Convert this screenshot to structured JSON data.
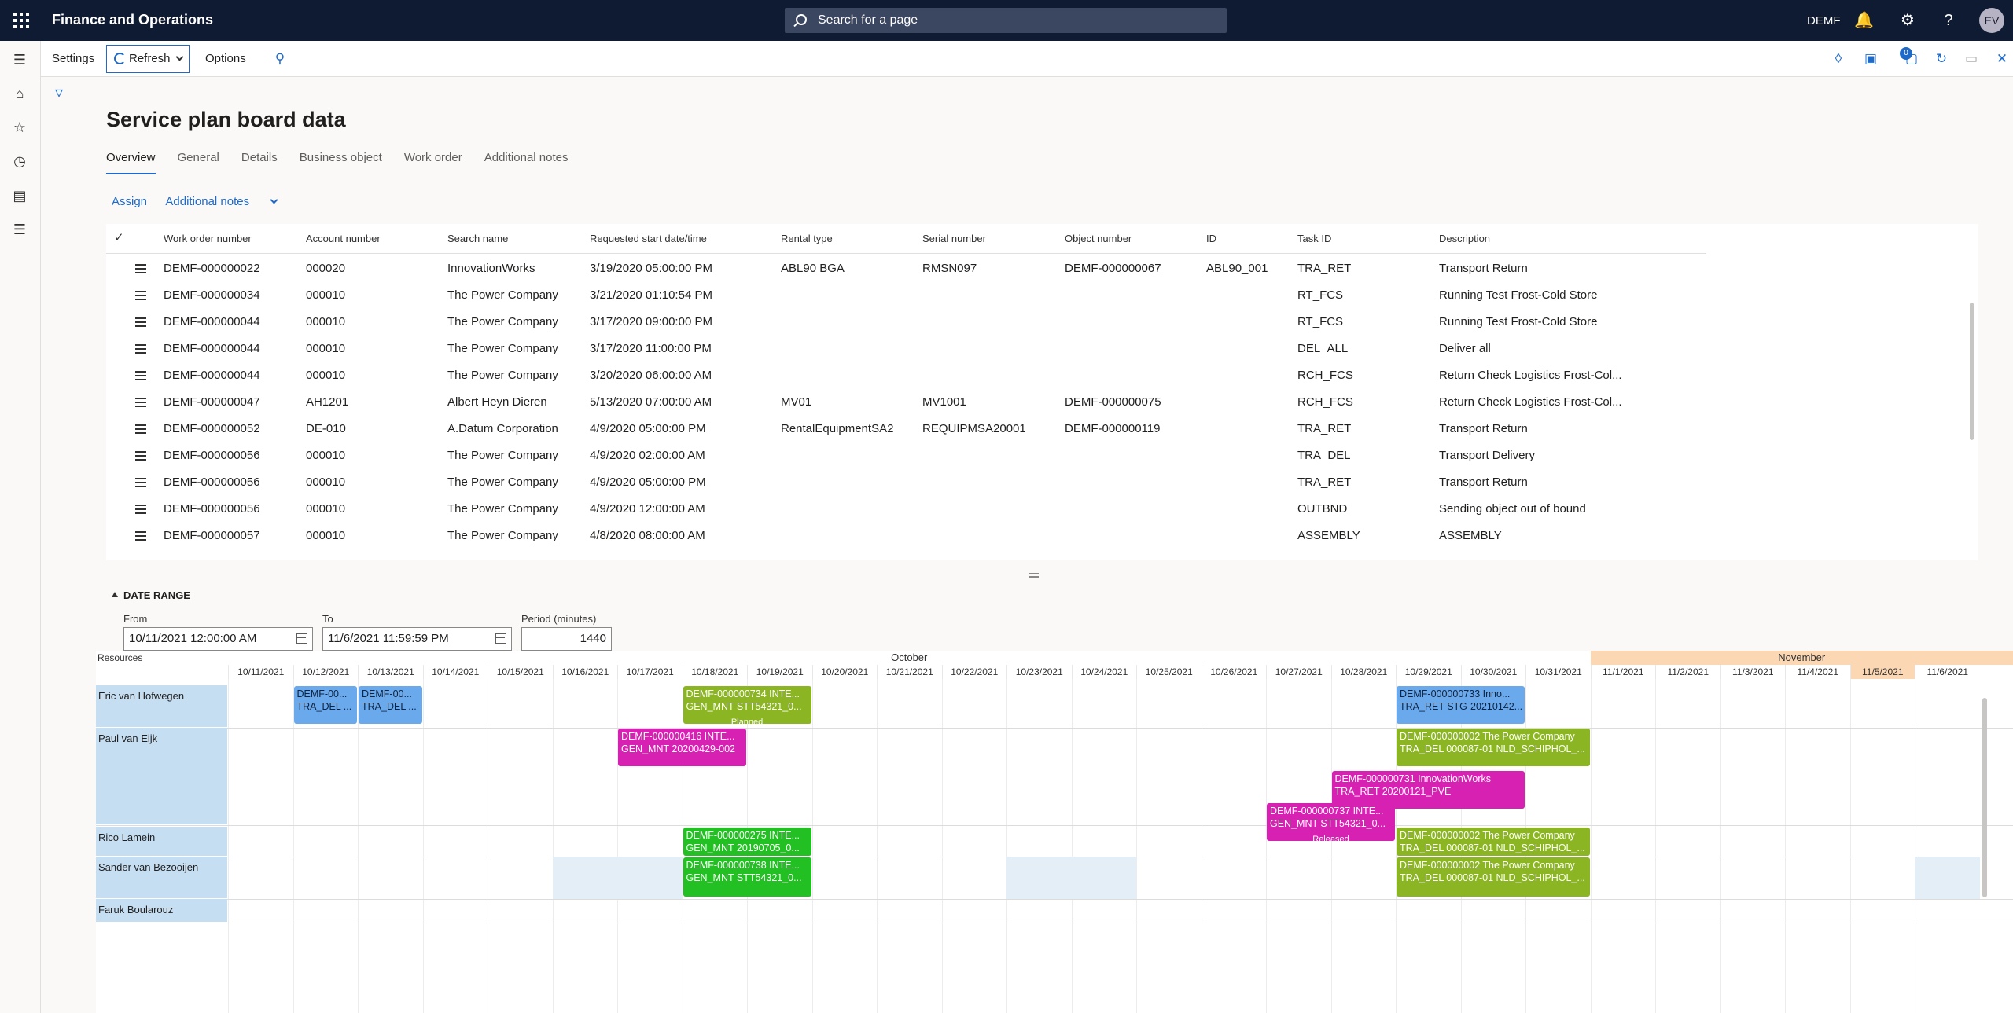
{
  "app": {
    "title": "Finance and Operations",
    "search_placeholder": "Search for a page",
    "company": "DEMF",
    "user_initials": "EV"
  },
  "actionbar": {
    "settings": "Settings",
    "refresh": "Refresh",
    "options": "Options",
    "badge_count": "0"
  },
  "page": {
    "title": "Service plan board data",
    "tabs": [
      "Overview",
      "General",
      "Details",
      "Business object",
      "Work order",
      "Additional notes"
    ],
    "actions": {
      "assign": "Assign",
      "additional_notes": "Additional notes"
    }
  },
  "grid": {
    "columns": [
      "Work order number",
      "Account number",
      "Search name",
      "Requested start date/time",
      "Rental type",
      "Serial number",
      "Object number",
      "ID",
      "Task ID",
      "Description"
    ],
    "rows": [
      [
        "DEMF-000000022",
        "000020",
        "InnovationWorks",
        "3/19/2020 05:00:00 PM",
        "ABL90 BGA",
        "RMSN097",
        "DEMF-000000067",
        "ABL90_001",
        "TRA_RET",
        "Transport Return"
      ],
      [
        "DEMF-000000034",
        "000010",
        "The Power Company",
        "3/21/2020 01:10:54 PM",
        "",
        "",
        "",
        "",
        "RT_FCS",
        "Running Test Frost-Cold Store"
      ],
      [
        "DEMF-000000044",
        "000010",
        "The Power Company",
        "3/17/2020 09:00:00 PM",
        "",
        "",
        "",
        "",
        "RT_FCS",
        "Running Test Frost-Cold Store"
      ],
      [
        "DEMF-000000044",
        "000010",
        "The Power Company",
        "3/17/2020 11:00:00 PM",
        "",
        "",
        "",
        "",
        "DEL_ALL",
        "Deliver all"
      ],
      [
        "DEMF-000000044",
        "000010",
        "The Power Company",
        "3/20/2020 06:00:00 AM",
        "",
        "",
        "",
        "",
        "RCH_FCS",
        "Return Check Logistics Frost-Col..."
      ],
      [
        "DEMF-000000047",
        "AH1201",
        "Albert Heyn Dieren",
        "5/13/2020 07:00:00 AM",
        "MV01",
        "MV1001",
        "DEMF-000000075",
        "",
        "RCH_FCS",
        "Return Check Logistics Frost-Col..."
      ],
      [
        "DEMF-000000052",
        "DE-010",
        "A.Datum Corporation",
        "4/9/2020 05:00:00 PM",
        "RentalEquipmentSA2",
        "REQUIPMSA20001",
        "DEMF-000000119",
        "",
        "TRA_RET",
        "Transport Return"
      ],
      [
        "DEMF-000000056",
        "000010",
        "The Power Company",
        "4/9/2020 02:00:00 AM",
        "",
        "",
        "",
        "",
        "TRA_DEL",
        "Transport Delivery"
      ],
      [
        "DEMF-000000056",
        "000010",
        "The Power Company",
        "4/9/2020 05:00:00 PM",
        "",
        "",
        "",
        "",
        "TRA_RET",
        "Transport Return"
      ],
      [
        "DEMF-000000056",
        "000010",
        "The Power Company",
        "4/9/2020 12:00:00 AM",
        "",
        "",
        "",
        "",
        "OUTBND",
        "Sending object out of bound"
      ],
      [
        "DEMF-000000057",
        "000010",
        "The Power Company",
        "4/8/2020 08:00:00 AM",
        "",
        "",
        "",
        "",
        "ASSEMBLY",
        "ASSEMBLY"
      ]
    ]
  },
  "date_range": {
    "section_label": "DATE RANGE",
    "from_label": "From",
    "from_value": "10/11/2021 12:00:00 AM",
    "to_label": "To",
    "to_value": "11/6/2021 11:59:59 PM",
    "period_label": "Period (minutes)",
    "period_value": "1440"
  },
  "schedule": {
    "resources_label": "Resources",
    "months": [
      "October",
      "November"
    ],
    "days": [
      "10/11/2021",
      "10/12/2021",
      "10/13/2021",
      "10/14/2021",
      "10/15/2021",
      "10/16/2021",
      "10/17/2021",
      "10/18/2021",
      "10/19/2021",
      "10/20/2021",
      "10/21/2021",
      "10/22/2021",
      "10/23/2021",
      "10/24/2021",
      "10/25/2021",
      "10/26/2021",
      "10/27/2021",
      "10/28/2021",
      "10/29/2021",
      "10/30/2021",
      "10/31/2021",
      "11/1/2021",
      "11/2/2021",
      "11/3/2021",
      "11/4/2021",
      "11/5/2021",
      "11/6/2021"
    ],
    "resources": [
      "Eric van Hofwegen",
      "Paul van Eijk",
      "Rico Lamein",
      "Sander van Bezooijen",
      "Faruk Boularouz"
    ],
    "tasks": [
      {
        "lane": 0,
        "row": 0,
        "start": 1,
        "span": 1,
        "color": "blue",
        "line1": "DEMF-00...",
        "line2": "TRA_DEL ..."
      },
      {
        "lane": 0,
        "row": 0,
        "start": 2,
        "span": 1,
        "color": "blue",
        "line1": "DEMF-00...",
        "line2": "TRA_DEL ..."
      },
      {
        "lane": 0,
        "row": 0,
        "start": 7,
        "span": 2,
        "color": "olive",
        "line1": "DEMF-000000734 INTE...",
        "line2": "GEN_MNT STT54321_0...",
        "status": "Planned"
      },
      {
        "lane": 0,
        "row": 0,
        "start": 18,
        "span": 2,
        "color": "blue",
        "line1": "DEMF-000000733 Inno...",
        "line2": "TRA_RET STG-20210142..."
      },
      {
        "lane": 0,
        "row": 1,
        "start": 18,
        "span": 3,
        "color": "olive",
        "line1": "DEMF-000000002 The Power Company",
        "line2": "TRA_DEL 000087-01 NLD_SCHIPHOL_..."
      },
      {
        "lane": 1,
        "row": 0,
        "start": 6,
        "span": 2,
        "color": "magenta",
        "line1": "DEMF-000000416 INTE...",
        "line2": "GEN_MNT 20200429-002"
      },
      {
        "lane": 1,
        "row": 0,
        "start": 18,
        "span": 3,
        "color": "olive",
        "line1": "DEMF-000000002 The Power Company",
        "line2": "TRA_DEL 000087-01 NLD_SCHIPHOL_..."
      },
      {
        "lane": 1,
        "row": 1,
        "start": 17,
        "span": 3,
        "color": "magenta",
        "line1": "DEMF-000000731 InnovationWorks",
        "line2": "TRA_RET 20200121_PVE"
      },
      {
        "lane": 1,
        "row": 2,
        "start": 16,
        "span": 2,
        "color": "magenta",
        "line1": "DEMF-000000737 INTE...",
        "line2": "GEN_MNT STT54321_0...",
        "status": "Released"
      },
      {
        "lane": 2,
        "row": 0,
        "start": 7,
        "span": 2,
        "color": "green",
        "line1": "DEMF-000000275 INTE...",
        "line2": "GEN_MNT 20190705_0..."
      },
      {
        "lane": 2,
        "row": 0,
        "start": 18,
        "span": 3,
        "color": "olive",
        "line1": "DEMF-000000002 The Power Company",
        "line2": "TRA_DEL 000087-01 NLD_SCHIPHOL_..."
      },
      {
        "lane": 3,
        "row": 0,
        "start": 7,
        "span": 2,
        "color": "green",
        "line1": "DEMF-000000738 INTE...",
        "line2": "GEN_MNT STT54321_0..."
      },
      {
        "lane": 3,
        "row": 0,
        "start": 18,
        "span": 3,
        "color": "olive",
        "line1": "DEMF-000000002 The Power Company",
        "line2": "TRA_DEL 000087-01 NLD_SCHIPHOL_..."
      }
    ]
  }
}
